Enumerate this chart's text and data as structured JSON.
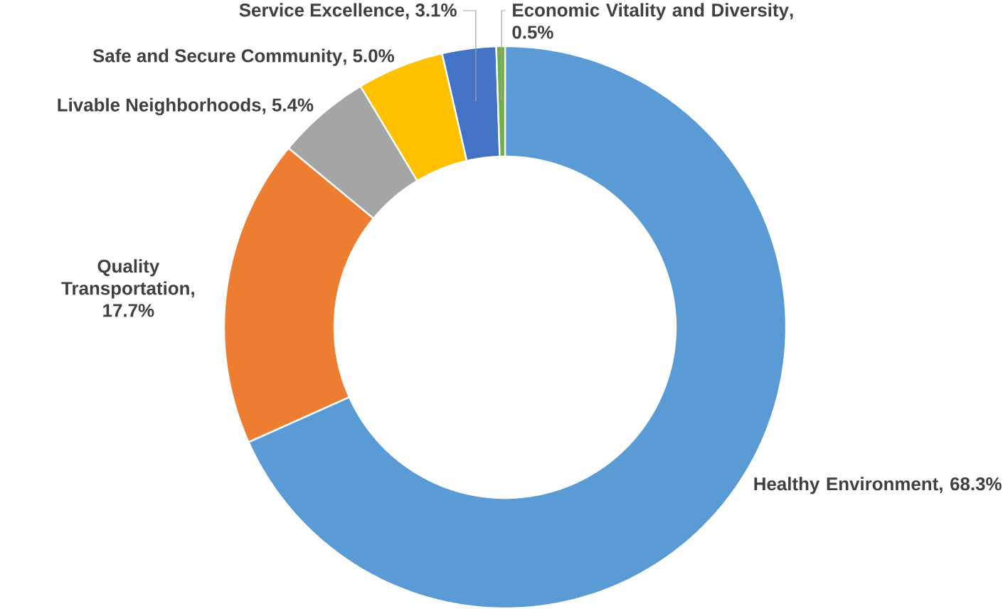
{
  "chart_data": {
    "type": "donut",
    "categories": [
      "Healthy Environment",
      "Quality Transportation",
      "Livable Neighborhoods",
      "Safe and Secure Community",
      "Service Excellence",
      "Economic Vitality and Diversity"
    ],
    "values": [
      68.3,
      17.7,
      5.4,
      5.0,
      3.1,
      0.5
    ],
    "value_labels": [
      ", 68.3%",
      ", 17.7%",
      ", 5.4%",
      ", 5.0%",
      ", 3.1%",
      ", 0.5%"
    ],
    "colors": [
      "#5b9bd5",
      "#ed7d31",
      "#a5a5a5",
      "#ffc000",
      "#4472c4",
      "#70ad47"
    ]
  }
}
